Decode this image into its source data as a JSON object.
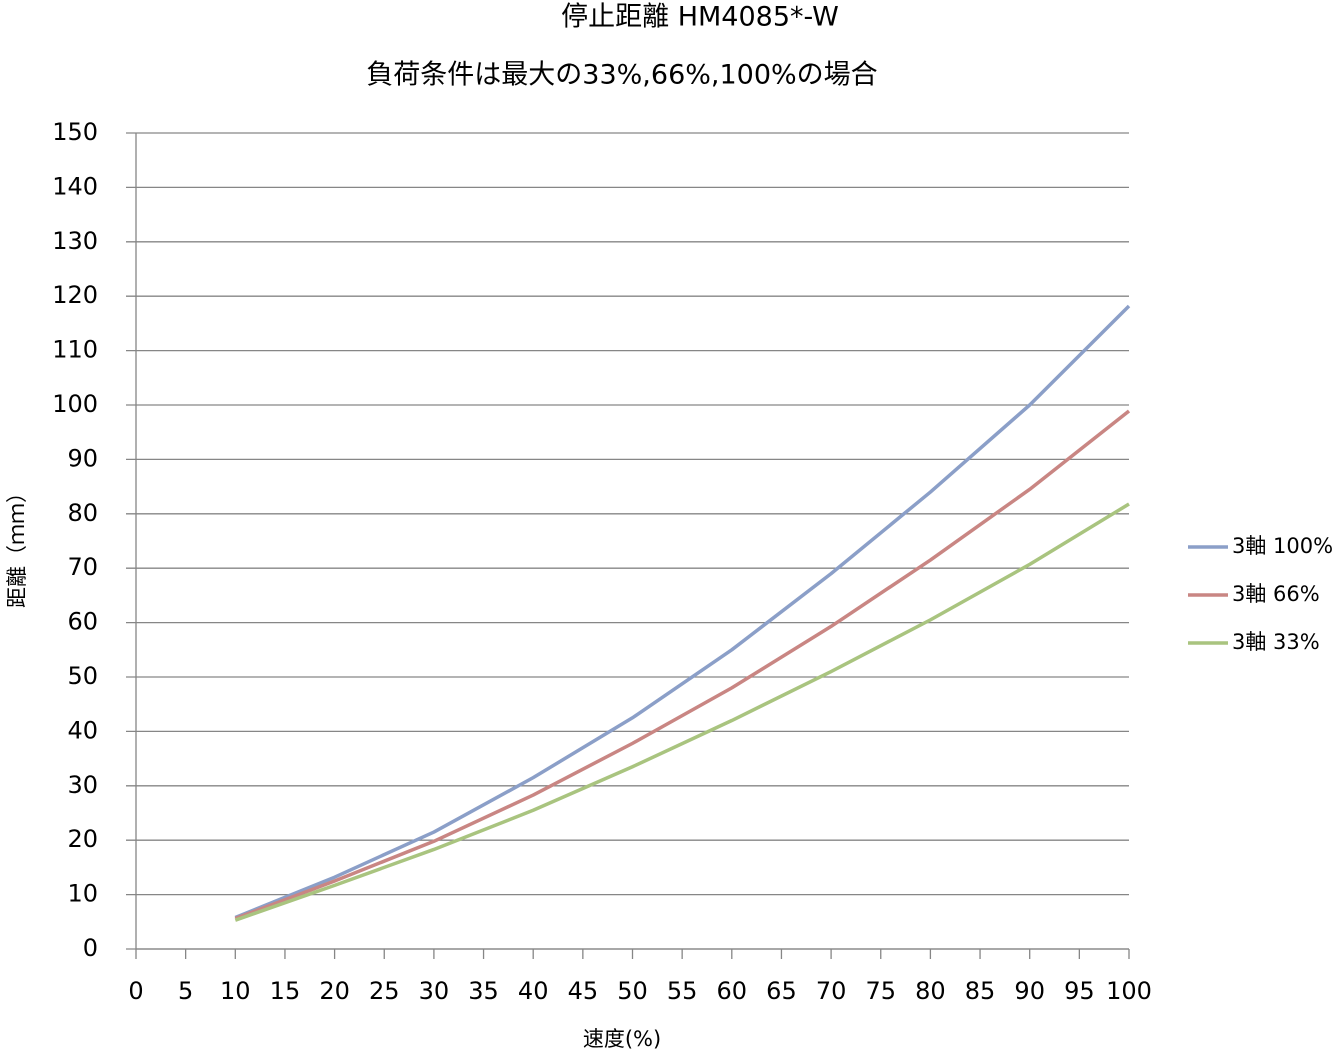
{
  "chart_data": {
    "type": "line",
    "title": "停止距離 HM4085*-W",
    "subtitle": "負荷条件は最大の33%,66%,100%の場合",
    "x_label": "速度(%)",
    "y_label": "距離（ｍｍ）",
    "x": [
      10,
      20,
      30,
      40,
      50,
      60,
      70,
      80,
      90,
      100
    ],
    "series": [
      {
        "name": "3軸 100%",
        "color": "#8b9fc8",
        "values": [
          5.8,
          13.2,
          21.5,
          31.5,
          42.5,
          55,
          69,
          84,
          100,
          118.2
        ]
      },
      {
        "name": "3軸 66%",
        "color": "#c98683",
        "values": [
          5.6,
          12.5,
          19.8,
          28.3,
          37.8,
          48,
          59.3,
          71.5,
          84.5,
          98.9
        ]
      },
      {
        "name": "3軸 33%",
        "color": "#a9c47f",
        "values": [
          5.3,
          11.7,
          18.3,
          25.5,
          33.5,
          42,
          51,
          60.5,
          70.7,
          81.8
        ]
      }
    ],
    "xlim": [
      0,
      100
    ],
    "xticks": [
      0,
      5,
      10,
      15,
      20,
      25,
      30,
      35,
      40,
      45,
      50,
      55,
      60,
      65,
      70,
      75,
      80,
      85,
      90,
      95,
      100
    ],
    "ylim": [
      0,
      150
    ],
    "yticks": [
      0,
      10,
      20,
      30,
      40,
      50,
      60,
      70,
      80,
      90,
      100,
      110,
      120,
      130,
      140,
      150
    ],
    "grid": true,
    "legend": "right"
  }
}
